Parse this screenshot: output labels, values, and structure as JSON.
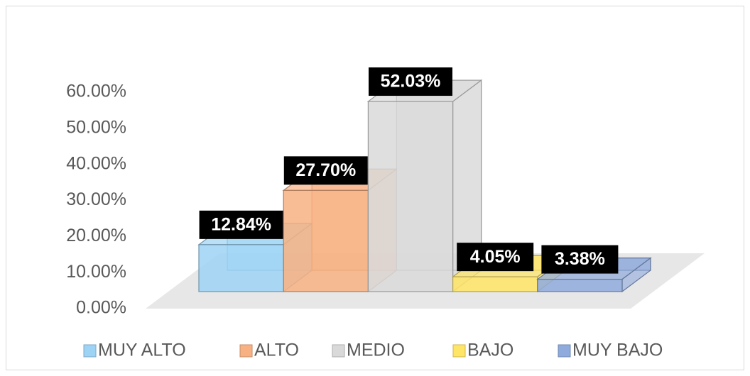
{
  "chart_data": {
    "type": "bar3d",
    "categories": [
      "MUY ALTO",
      "ALTO",
      "MEDIO",
      "BAJO",
      "MUY BAJO"
    ],
    "values": [
      12.84,
      27.7,
      52.03,
      4.05,
      3.38
    ],
    "value_labels": [
      "12.84%",
      "27.70%",
      "52.03%",
      "4.05%",
      "3.38%"
    ],
    "colors": [
      "#9dd3f5",
      "#f8b183",
      "#d9d9d9",
      "#ffe566",
      "#8faadc"
    ],
    "ylim": [
      0,
      60
    ],
    "yticks": [
      {
        "value": 0,
        "label": "0.00%"
      },
      {
        "value": 10,
        "label": "10.00%"
      },
      {
        "value": 20,
        "label": "20.00%"
      },
      {
        "value": 30,
        "label": "30.00%"
      },
      {
        "value": 40,
        "label": "40.00%"
      },
      {
        "value": 50,
        "label": "50.00%"
      },
      {
        "value": 60,
        "label": "60.00%"
      }
    ],
    "legend": "bottom"
  }
}
